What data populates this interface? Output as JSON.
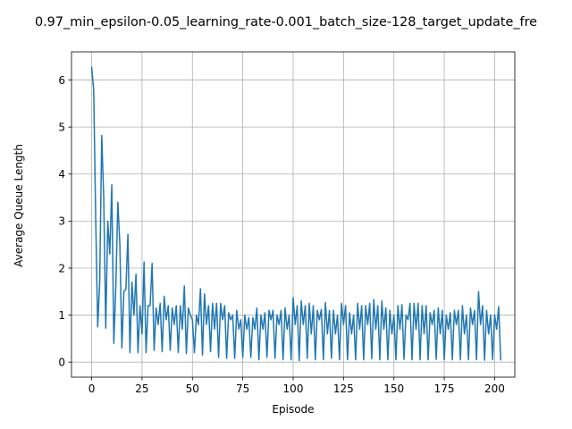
{
  "chart_data": {
    "type": "line",
    "title": "0.97_min_epsilon-0.05_learning_rate-0.001_batch_size-128_target_update_fre",
    "xlabel": "Episode",
    "ylabel": "Average Queue Length",
    "xlim": [
      -10,
      210
    ],
    "ylim": [
      -0.32,
      6.6
    ],
    "xticks": [
      0,
      25,
      50,
      75,
      100,
      125,
      150,
      175,
      200
    ],
    "yticks": [
      0,
      1,
      2,
      3,
      4,
      5,
      6
    ],
    "xtick_labels": [
      "0",
      "25",
      "50",
      "75",
      "100",
      "125",
      "150",
      "175",
      "200"
    ],
    "ytick_labels": [
      "0",
      "1",
      "2",
      "3",
      "4",
      "5",
      "6"
    ],
    "grid": true,
    "line_color": "#1f77b4",
    "series": [
      {
        "values": [
          6.27,
          5.8,
          3.1,
          0.75,
          1.7,
          4.82,
          3.5,
          0.72,
          3.0,
          2.3,
          3.77,
          0.4,
          1.6,
          3.4,
          2.5,
          0.3,
          1.5,
          1.55,
          2.72,
          0.2,
          1.7,
          1.0,
          1.87,
          0.2,
          1.2,
          0.6,
          2.13,
          0.2,
          1.2,
          1.2,
          2.1,
          0.25,
          1.15,
          0.8,
          1.25,
          0.22,
          1.4,
          0.9,
          1.2,
          0.25,
          1.15,
          0.8,
          1.2,
          0.2,
          1.2,
          0.7,
          1.62,
          0.18,
          1.15,
          1.0,
          0.9,
          0.2,
          1.0,
          0.8,
          1.56,
          0.15,
          1.45,
          0.8,
          1.2,
          0.22,
          1.25,
          0.7,
          1.25,
          0.1,
          1.25,
          0.9,
          1.2,
          0.08,
          1.05,
          0.9,
          1.0,
          0.08,
          1.1,
          0.7,
          0.9,
          0.1,
          1.0,
          0.7,
          0.95,
          0.1,
          0.95,
          0.7,
          1.15,
          0.05,
          1.0,
          0.7,
          1.05,
          0.1,
          1.1,
          0.9,
          1.1,
          0.08,
          1.0,
          0.8,
          1.1,
          0.05,
          1.15,
          0.7,
          1.0,
          0.05,
          1.37,
          0.8,
          1.2,
          0.03,
          1.3,
          0.8,
          1.2,
          0.08,
          1.25,
          0.6,
          1.2,
          0.05,
          1.1,
          0.9,
          1.12,
          0.05,
          1.27,
          0.6,
          1.1,
          0.08,
          1.1,
          0.6,
          1.0,
          0.05,
          1.25,
          0.8,
          1.2,
          0.05,
          1.05,
          0.6,
          1.0,
          0.05,
          1.25,
          0.7,
          1.2,
          0.05,
          1.2,
          0.8,
          1.25,
          0.07,
          1.33,
          0.7,
          1.2,
          0.05,
          1.3,
          0.7,
          1.15,
          0.05,
          1.1,
          0.6,
          1.0,
          0.05,
          1.2,
          0.7,
          1.22,
          0.06,
          1.0,
          0.9,
          1.25,
          0.05,
          1.25,
          0.7,
          1.25,
          0.05,
          1.2,
          0.6,
          1.2,
          0.05,
          1.05,
          0.8,
          1.1,
          0.06,
          1.15,
          0.6,
          1.1,
          0.05,
          1.0,
          0.7,
          1.05,
          0.05,
          1.1,
          0.8,
          1.1,
          0.05,
          1.2,
          0.6,
          1.0,
          0.05,
          1.15,
          0.8,
          1.1,
          0.05,
          1.5,
          0.8,
          1.2,
          0.04,
          1.1,
          0.6,
          1.0,
          0.05,
          1.0,
          0.7,
          1.18,
          0.05
        ]
      }
    ]
  }
}
